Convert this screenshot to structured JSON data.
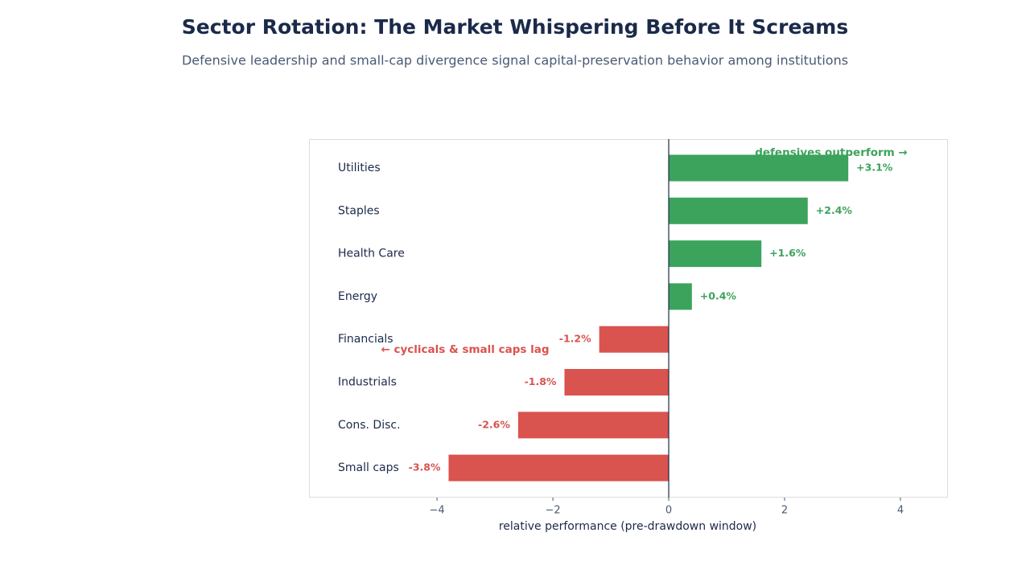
{
  "chart_data": {
    "type": "barh",
    "title": "Sector Rotation: The Market Whispering Before It Screams",
    "subtitle": "Defensive leadership and small-cap divergence signal capital-preservation behavior among institutions",
    "x_label": "relative performance (pre-drawdown window)",
    "categories": [
      "Utilities",
      "Staples",
      "Health Care",
      "Energy",
      "Financials",
      "Industrials",
      "Cons. Disc.",
      "Small caps"
    ],
    "values": [
      3.1,
      2.4,
      1.6,
      0.4,
      -1.2,
      -1.8,
      -2.6,
      -3.8
    ],
    "value_labels": [
      "+3.1%",
      "+2.4%",
      "+1.6%",
      "+0.4%",
      "-1.2%",
      "-1.8%",
      "-2.6%",
      "-3.8%"
    ],
    "colors": [
      "#3ca35c",
      "#3ca35c",
      "#3ca35c",
      "#3ca35c",
      "#d9534f",
      "#d9534f",
      "#d9534f",
      "#d9534f"
    ],
    "xlim": [
      -6.21,
      4.82
    ],
    "xticks": [
      {
        "value": -4,
        "label": "−4"
      },
      {
        "value": -2,
        "label": "−2"
      },
      0,
      2,
      4
    ],
    "annotations": [
      "defensives outperform →",
      "← cyclicals & small caps lag"
    ]
  }
}
